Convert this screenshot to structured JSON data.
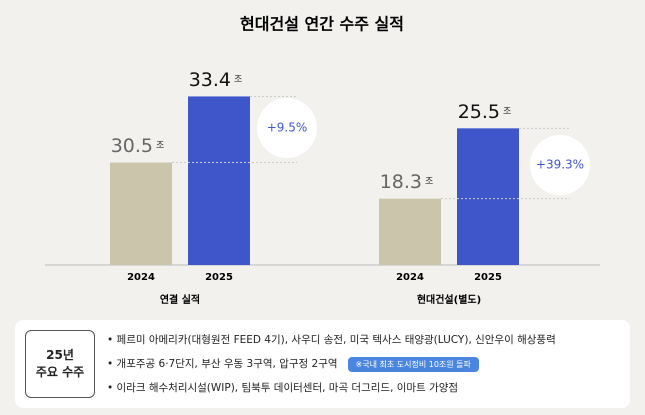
{
  "title": "현대건설 연간 수주 실적",
  "chart_data": [
    {
      "type": "bar",
      "title": "연결 실적",
      "categories": [
        "2024",
        "2025"
      ],
      "values": [
        30.5,
        33.4
      ],
      "unit": "조",
      "colors": [
        "#cbc6ab",
        "#3e56c9"
      ],
      "annotation": "+9.5%",
      "ylim": [
        26,
        35
      ]
    },
    {
      "type": "bar",
      "title": "현대건설(별도)",
      "categories": [
        "2024",
        "2025"
      ],
      "values": [
        18.3,
        25.5
      ],
      "unit": "조",
      "colors": [
        "#cbc6ab",
        "#3e56c9"
      ],
      "annotation": "+39.3%",
      "ylim": [
        11.5,
        32.5
      ]
    }
  ],
  "highlights": {
    "label": [
      "25년",
      "주요 수주"
    ],
    "items": [
      "페르미 아메리카(대형원전 FEED 4기), 사우디 송전, 미국 텍사스 태양광(LUCY), 신안우이 해상풍력",
      "개포주공 6·7단지, 부산 우동 3구역, 압구정 2구역",
      "이라크 해수처리시설(WIP), 팀북투 데이터센터, 마곡 더그리드, 이마트 가양점"
    ],
    "badge": "※국내 최초 도시정비 10조원 돌파"
  }
}
